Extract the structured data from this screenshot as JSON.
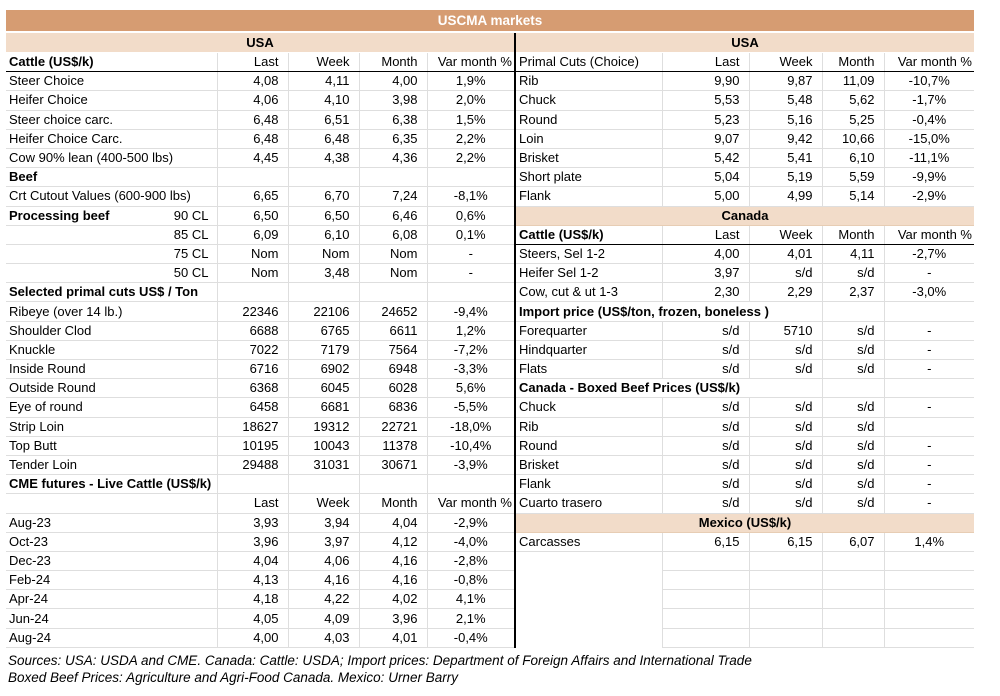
{
  "title": "USCMA markets",
  "colors": {
    "band_dark": "#d69c72",
    "band_light": "#f2dcc9",
    "grid": "#dedede",
    "divider": "#000000"
  },
  "sources": {
    "line1": "Sources: USA: USDA and CME. Canada: Cattle: USDA; Import prices: Department of Foreign Affairs and International Trade",
    "line2": "Boxed Beef Prices: Agriculture and Agri-Food Canada. Mexico: Urner Barry"
  },
  "left": {
    "region": "USA",
    "rows": [
      {
        "t": "h",
        "bold": true,
        "label": "Cattle (US$/k)",
        "values": [
          "Last",
          "Week",
          "Month",
          "Var month %"
        ]
      },
      {
        "t": "d",
        "label": "Steer Choice",
        "values": [
          "4,08",
          "4,11",
          "4,00",
          "1,9%"
        ]
      },
      {
        "t": "d",
        "label": "Heifer Choice",
        "values": [
          "4,06",
          "4,10",
          "3,98",
          "2,0%"
        ]
      },
      {
        "t": "d",
        "label": "Steer choice carc.",
        "values": [
          "6,48",
          "6,51",
          "6,38",
          "1,5%"
        ]
      },
      {
        "t": "d",
        "label": "Heifer Choice Carc.",
        "values": [
          "6,48",
          "6,48",
          "6,35",
          "2,2%"
        ]
      },
      {
        "t": "d",
        "label": "Cow 90% lean (400-500 lbs)",
        "values": [
          "4,45",
          "4,38",
          "4,36",
          "2,2%"
        ]
      },
      {
        "t": "s",
        "label": "Beef",
        "values": [
          "",
          "",
          "",
          ""
        ]
      },
      {
        "t": "d",
        "label": "Crt Cutout Values (600-900 lbs)",
        "values": [
          "6,65",
          "6,70",
          "7,24",
          "-8,1%"
        ]
      },
      {
        "t": "d",
        "bold": true,
        "label": "Processing beef",
        "label2": "90 CL",
        "values": [
          "6,50",
          "6,50",
          "6,46",
          "0,6%"
        ]
      },
      {
        "t": "d",
        "label": "",
        "label2": "85 CL",
        "values": [
          "6,09",
          "6,10",
          "6,08",
          "0,1%"
        ]
      },
      {
        "t": "d",
        "label": "",
        "label2": "75 CL",
        "values": [
          "Nom",
          "Nom",
          "Nom",
          "-"
        ]
      },
      {
        "t": "d",
        "label": "",
        "label2": "50 CL",
        "values": [
          "Nom",
          "3,48",
          "Nom",
          "-"
        ]
      },
      {
        "t": "s",
        "label": "Selected primal cuts US$ / Ton",
        "values": [
          "",
          "",
          "",
          ""
        ]
      },
      {
        "t": "d",
        "label": "Ribeye (over 14 lb.)",
        "values": [
          "22346",
          "22106",
          "24652",
          "-9,4%"
        ]
      },
      {
        "t": "d",
        "label": "Shoulder Clod",
        "values": [
          "6688",
          "6765",
          "6611",
          "1,2%"
        ]
      },
      {
        "t": "d",
        "label": "Knuckle",
        "values": [
          "7022",
          "7179",
          "7564",
          "-7,2%"
        ]
      },
      {
        "t": "d",
        "label": "Inside Round",
        "values": [
          "6716",
          "6902",
          "6948",
          "-3,3%"
        ]
      },
      {
        "t": "d",
        "label": "Outside Round",
        "values": [
          "6368",
          "6045",
          "6028",
          "5,6%"
        ]
      },
      {
        "t": "d",
        "label": "Eye of round",
        "values": [
          "6458",
          "6681",
          "6836",
          "-5,5%"
        ]
      },
      {
        "t": "d",
        "label": "Strip Loin",
        "values": [
          "18627",
          "19312",
          "22721",
          "-18,0%"
        ]
      },
      {
        "t": "d",
        "label": "Top Butt",
        "values": [
          "10195",
          "10043",
          "11378",
          "-10,4%"
        ]
      },
      {
        "t": "d",
        "label": "Tender Loin",
        "values": [
          "29488",
          "31031",
          "30671",
          "-3,9%"
        ]
      },
      {
        "t": "s",
        "label": "CME futures - Live Cattle (US$/k)",
        "values": [
          "",
          "",
          "",
          ""
        ]
      },
      {
        "t": "h",
        "nb": true,
        "label": "",
        "values": [
          "Last",
          "Week",
          "Month",
          "Var month %"
        ]
      },
      {
        "t": "d",
        "label": "Aug-23",
        "values": [
          "3,93",
          "3,94",
          "4,04",
          "-2,9%"
        ]
      },
      {
        "t": "d",
        "label": "Oct-23",
        "values": [
          "3,96",
          "3,97",
          "4,12",
          "-4,0%"
        ]
      },
      {
        "t": "d",
        "label": "Dec-23",
        "values": [
          "4,04",
          "4,06",
          "4,16",
          "-2,8%"
        ]
      },
      {
        "t": "d",
        "label": "Feb-24",
        "values": [
          "4,13",
          "4,16",
          "4,16",
          "-0,8%"
        ]
      },
      {
        "t": "d",
        "label": "Apr-24",
        "values": [
          "4,18",
          "4,22",
          "4,02",
          "4,1%"
        ]
      },
      {
        "t": "d",
        "label": "Jun-24",
        "values": [
          "4,05",
          "4,09",
          "3,96",
          "2,1%"
        ]
      },
      {
        "t": "d",
        "label": "Aug-24",
        "values": [
          "4,00",
          "4,03",
          "4,01",
          "-0,4%"
        ]
      }
    ]
  },
  "right": {
    "region": "USA",
    "rows": [
      {
        "t": "h",
        "label": "Primal Cuts (Choice)",
        "values": [
          "Last",
          "Week",
          "Month",
          "Var month %"
        ]
      },
      {
        "t": "d",
        "label": "Rib",
        "values": [
          "9,90",
          "9,87",
          "11,09",
          "-10,7%"
        ]
      },
      {
        "t": "d",
        "label": "Chuck",
        "values": [
          "5,53",
          "5,48",
          "5,62",
          "-1,7%"
        ]
      },
      {
        "t": "d",
        "label": "Round",
        "values": [
          "5,23",
          "5,16",
          "5,25",
          "-0,4%"
        ]
      },
      {
        "t": "d",
        "label": "Loin",
        "values": [
          "9,07",
          "9,42",
          "10,66",
          "-15,0%"
        ]
      },
      {
        "t": "d",
        "label": "Brisket",
        "values": [
          "5,42",
          "5,41",
          "6,10",
          "-11,1%"
        ]
      },
      {
        "t": "d",
        "label": "Short plate",
        "values": [
          "5,04",
          "5,19",
          "5,59",
          "-9,9%"
        ]
      },
      {
        "t": "d",
        "label": "Flank",
        "values": [
          "5,00",
          "4,99",
          "5,14",
          "-2,9%"
        ]
      },
      {
        "t": "b",
        "label": "Canada"
      },
      {
        "t": "h",
        "bold": true,
        "label": "Cattle (US$/k)",
        "values": [
          "Last",
          "Week",
          "Month",
          "Var month %"
        ]
      },
      {
        "t": "d",
        "label": "Steers, Sel 1-2",
        "values": [
          "4,00",
          "4,01",
          "4,11",
          "-2,7%"
        ]
      },
      {
        "t": "d",
        "label": "Heifer Sel 1-2",
        "values": [
          "3,97",
          "s/d",
          "s/d",
          "-"
        ]
      },
      {
        "t": "d",
        "label": "Cow, cut & ut 1-3",
        "values": [
          "2,30",
          "2,29",
          "2,37",
          "-3,0%"
        ]
      },
      {
        "t": "s",
        "wide": true,
        "label": "Import price (US$/ton, frozen, boneless )",
        "values": [
          "",
          ""
        ]
      },
      {
        "t": "d",
        "label": "Forequarter",
        "values": [
          "s/d",
          "5710",
          "s/d",
          "-"
        ]
      },
      {
        "t": "d",
        "label": "Hindquarter",
        "values": [
          "s/d",
          "s/d",
          "s/d",
          "-"
        ]
      },
      {
        "t": "d",
        "label": "Flats",
        "values": [
          "s/d",
          "s/d",
          "s/d",
          "-"
        ]
      },
      {
        "t": "s",
        "wide": true,
        "label": "Canada - Boxed Beef Prices (US$/k)",
        "values": [
          "",
          ""
        ]
      },
      {
        "t": "d",
        "label": "Chuck",
        "values": [
          "s/d",
          "s/d",
          "s/d",
          "-"
        ]
      },
      {
        "t": "d",
        "label": "Rib",
        "values": [
          "s/d",
          "s/d",
          "s/d",
          ""
        ]
      },
      {
        "t": "d",
        "label": "Round",
        "values": [
          "s/d",
          "s/d",
          "s/d",
          "-"
        ]
      },
      {
        "t": "d",
        "label": "Brisket",
        "values": [
          "s/d",
          "s/d",
          "s/d",
          "-"
        ]
      },
      {
        "t": "d",
        "label": "Flank",
        "values": [
          "s/d",
          "s/d",
          "s/d",
          "-"
        ]
      },
      {
        "t": "d",
        "label": "Cuarto trasero",
        "values": [
          "s/d",
          "s/d",
          "s/d",
          "-"
        ]
      },
      {
        "t": "b",
        "label": "Mexico (US$/k)"
      },
      {
        "t": "d",
        "label": "Carcasses",
        "values": [
          "6,15",
          "6,15",
          "6,07",
          "1,4%"
        ]
      },
      {
        "t": "e",
        "label": "",
        "values": [
          "",
          "",
          "",
          ""
        ]
      },
      {
        "t": "e",
        "label": "",
        "values": [
          "",
          "",
          "",
          ""
        ]
      },
      {
        "t": "e",
        "label": "",
        "values": [
          "",
          "",
          "",
          ""
        ]
      },
      {
        "t": "e",
        "label": "",
        "values": [
          "",
          "",
          "",
          ""
        ]
      },
      {
        "t": "e",
        "label": "",
        "values": [
          "",
          "",
          "",
          ""
        ]
      }
    ]
  }
}
